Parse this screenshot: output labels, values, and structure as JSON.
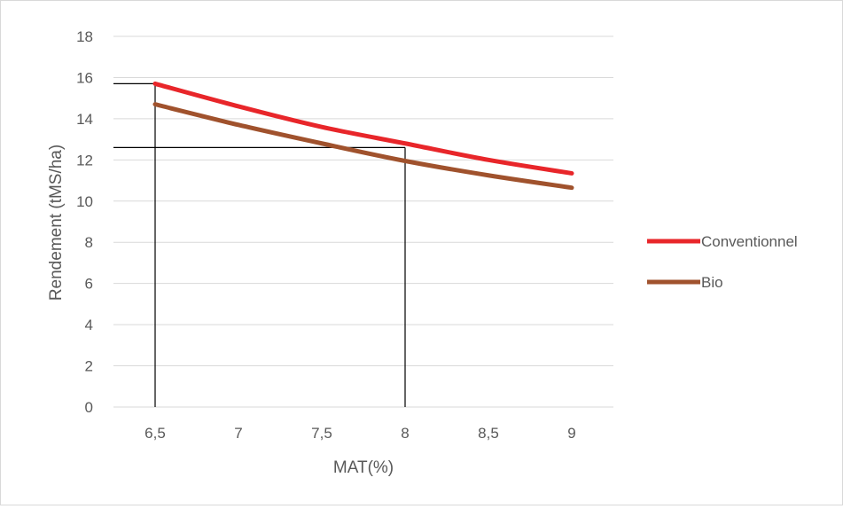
{
  "chart_data": {
    "type": "line",
    "xlabel": "MAT(%)",
    "ylabel": "Rendement (tMS/ha)",
    "xlim": [
      6.25,
      9.25
    ],
    "ylim": [
      0,
      18
    ],
    "x_ticks": [
      6.5,
      7,
      7.5,
      8,
      8.5,
      9
    ],
    "x_tick_labels": [
      "6,5",
      "7",
      "7,5",
      "8",
      "8,5",
      "9"
    ],
    "y_ticks": [
      0,
      2,
      4,
      6,
      8,
      10,
      12,
      14,
      16,
      18
    ],
    "y_tick_labels": [
      "0",
      "2",
      "4",
      "6",
      "8",
      "10",
      "12",
      "14",
      "16",
      "18"
    ],
    "grid": "horizontal",
    "legend_position": "right",
    "series": [
      {
        "name": "Conventionnel",
        "color": "#e8262a",
        "x": [
          6.5,
          7,
          7.5,
          8,
          8.5,
          9
        ],
        "values": [
          15.7,
          14.6,
          13.6,
          12.8,
          12.0,
          11.35
        ]
      },
      {
        "name": "Bio",
        "color": "#a0522d",
        "x": [
          6.5,
          7,
          7.5,
          8,
          8.5,
          9
        ],
        "values": [
          14.7,
          13.7,
          12.8,
          11.95,
          11.25,
          10.65
        ]
      }
    ],
    "reference_lines": [
      {
        "x": 6.5,
        "y": 15.7
      },
      {
        "x": 8,
        "y": 12.6
      }
    ]
  }
}
